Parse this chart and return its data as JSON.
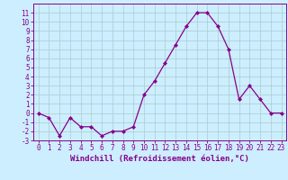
{
  "x": [
    0,
    1,
    2,
    3,
    4,
    5,
    6,
    7,
    8,
    9,
    10,
    11,
    12,
    13,
    14,
    15,
    16,
    17,
    18,
    19,
    20,
    21,
    22,
    23
  ],
  "y": [
    0,
    -0.5,
    -2.5,
    -0.5,
    -1.5,
    -1.5,
    -2.5,
    -2,
    -2,
    -1.5,
    2,
    3.5,
    5.5,
    7.5,
    9.5,
    11,
    11,
    9.5,
    7,
    1.5,
    3,
    1.5,
    0,
    0
  ],
  "line_color": "#880088",
  "marker": "D",
  "marker_size": 2.0,
  "bg_color": "#cceeff",
  "grid_color": "#aacccc",
  "xlabel": "Windchill (Refroidissement éolien,°C)",
  "xlabel_fontsize": 6.5,
  "ylim": [
    -3,
    12
  ],
  "xlim": [
    -0.5,
    23.5
  ],
  "yticks": [
    -3,
    -2,
    -1,
    0,
    1,
    2,
    3,
    4,
    5,
    6,
    7,
    8,
    9,
    10,
    11
  ],
  "xticks": [
    0,
    1,
    2,
    3,
    4,
    5,
    6,
    7,
    8,
    9,
    10,
    11,
    12,
    13,
    14,
    15,
    16,
    17,
    18,
    19,
    20,
    21,
    22,
    23
  ],
  "tick_fontsize": 5.5,
  "linewidth": 0.9
}
